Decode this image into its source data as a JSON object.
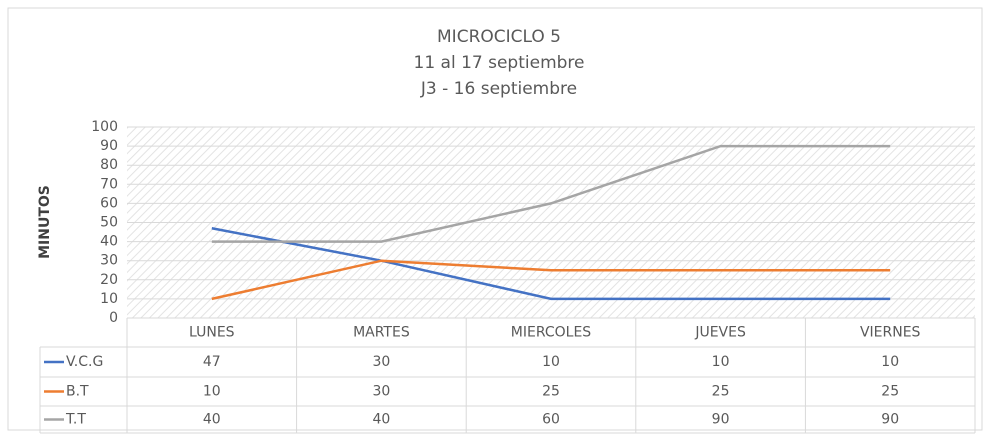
{
  "chart_data": {
    "type": "line",
    "title": [
      "MICROCICLO 5",
      "11 al 17 septiembre",
      "J3 - 16 septiembre"
    ],
    "y_label": "MINUTOS",
    "categories": [
      "LUNES",
      "MARTES",
      "MIERCOLES",
      "JUEVES",
      "VIERNES"
    ],
    "series": [
      {
        "name": "V.C.G",
        "color": "#4472c4",
        "values": [
          47,
          30,
          10,
          10,
          10
        ]
      },
      {
        "name": "B.T",
        "color": "#ed7d31",
        "values": [
          10,
          30,
          25,
          25,
          25
        ]
      },
      {
        "name": "T.T",
        "color": "#a5a5a5",
        "values": [
          40,
          40,
          60,
          90,
          90
        ]
      }
    ],
    "ylim": [
      0,
      100
    ],
    "yticks": [
      0,
      10,
      20,
      30,
      40,
      50,
      60,
      70,
      80,
      90,
      100
    ],
    "grid": true,
    "data_table": true
  }
}
